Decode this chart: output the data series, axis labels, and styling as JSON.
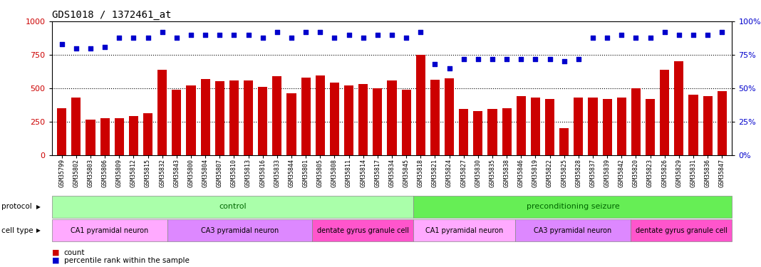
{
  "title": "GDS1018 / 1372461_at",
  "samples": [
    "GSM35799",
    "GSM35802",
    "GSM35803",
    "GSM35806",
    "GSM35809",
    "GSM35812",
    "GSM35815",
    "GSM35832",
    "GSM35843",
    "GSM35800",
    "GSM35804",
    "GSM35807",
    "GSM35810",
    "GSM35813",
    "GSM35816",
    "GSM35833",
    "GSM35844",
    "GSM35801",
    "GSM35805",
    "GSM35808",
    "GSM35811",
    "GSM35814",
    "GSM35817",
    "GSM35834",
    "GSM35845",
    "GSM35818",
    "GSM35821",
    "GSM35824",
    "GSM35827",
    "GSM35830",
    "GSM35835",
    "GSM35838",
    "GSM35846",
    "GSM35819",
    "GSM35822",
    "GSM35825",
    "GSM35828",
    "GSM35837",
    "GSM35839",
    "GSM35842",
    "GSM35820",
    "GSM35823",
    "GSM35826",
    "GSM35829",
    "GSM35831",
    "GSM35836",
    "GSM35847"
  ],
  "counts": [
    350,
    430,
    265,
    275,
    275,
    290,
    310,
    635,
    490,
    520,
    570,
    550,
    555,
    555,
    510,
    590,
    460,
    580,
    595,
    540,
    520,
    530,
    500,
    555,
    490,
    750,
    565,
    575,
    345,
    330,
    345,
    350,
    440,
    430,
    420,
    200,
    430,
    430,
    420,
    430,
    500,
    420,
    640,
    700,
    450,
    440,
    480
  ],
  "percentiles": [
    83,
    80,
    80,
    81,
    88,
    88,
    88,
    92,
    88,
    90,
    90,
    90,
    90,
    90,
    88,
    92,
    88,
    92,
    92,
    88,
    90,
    88,
    90,
    90,
    88,
    92,
    68,
    65,
    72,
    72,
    72,
    72,
    72,
    72,
    72,
    70,
    72,
    88,
    88,
    90,
    88,
    88,
    92,
    90,
    90,
    90,
    92
  ],
  "bar_color": "#cc0000",
  "dot_color": "#0000cc",
  "ylim_left": [
    0,
    1000
  ],
  "ylim_right": [
    0,
    100
  ],
  "yticks_left": [
    0,
    250,
    500,
    750,
    1000
  ],
  "yticks_right": [
    0,
    25,
    50,
    75,
    100
  ],
  "protocol_groups": [
    {
      "label": "control",
      "start": 0,
      "end": 24,
      "color": "#aaffaa"
    },
    {
      "label": "preconditioning seizure",
      "start": 25,
      "end": 46,
      "color": "#66ee55"
    }
  ],
  "cell_type_groups": [
    {
      "label": "CA1 pyramidal neuron",
      "start": 0,
      "end": 7,
      "color": "#ffaaff"
    },
    {
      "label": "CA3 pyramidal neuron",
      "start": 8,
      "end": 17,
      "color": "#dd88ff"
    },
    {
      "label": "dentate gyrus granule cell",
      "start": 18,
      "end": 24,
      "color": "#ff55cc"
    },
    {
      "label": "CA1 pyramidal neuron",
      "start": 25,
      "end": 31,
      "color": "#ffaaff"
    },
    {
      "label": "CA3 pyramidal neuron",
      "start": 32,
      "end": 39,
      "color": "#dd88ff"
    },
    {
      "label": "dentate gyrus granule cell",
      "start": 40,
      "end": 46,
      "color": "#ff55cc"
    }
  ],
  "protocol_text_color": "#006600",
  "cell_text_color": "#000000",
  "legend_count_color": "#cc0000",
  "legend_dot_color": "#0000cc"
}
